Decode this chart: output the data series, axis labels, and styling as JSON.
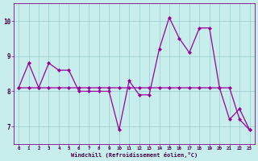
{
  "background_color": "#c8eded",
  "line_color": "#990099",
  "grid_color": "#99cccc",
  "xlabel": "Windchill (Refroidissement éolien,°C)",
  "hours": [
    0,
    1,
    2,
    3,
    4,
    5,
    6,
    7,
    8,
    9,
    10,
    11,
    12,
    13,
    14,
    15,
    16,
    17,
    18,
    19,
    20,
    21,
    22,
    23
  ],
  "series1": [
    8.1,
    8.8,
    8.1,
    8.8,
    8.6,
    8.6,
    8.0,
    8.0,
    8.0,
    8.0,
    6.9,
    8.3,
    7.9,
    7.9,
    9.2,
    10.1,
    9.5,
    9.1,
    9.8,
    9.8,
    8.1,
    7.2,
    7.5,
    6.9
  ],
  "series2": [
    8.1,
    8.1,
    8.1,
    8.1,
    8.1,
    8.1,
    8.1,
    8.1,
    8.1,
    8.1,
    8.1,
    8.1,
    8.1,
    8.1,
    8.1,
    8.1,
    8.1,
    8.1,
    8.1,
    8.1,
    8.1,
    8.1,
    7.2,
    6.9
  ],
  "ylim": [
    6.5,
    10.5
  ],
  "yticks": [
    7,
    8,
    9,
    10
  ],
  "xlim": [
    -0.5,
    23.5
  ],
  "xtick_fontsize": 4.2,
  "ytick_fontsize": 5.5,
  "xlabel_fontsize": 5.0
}
